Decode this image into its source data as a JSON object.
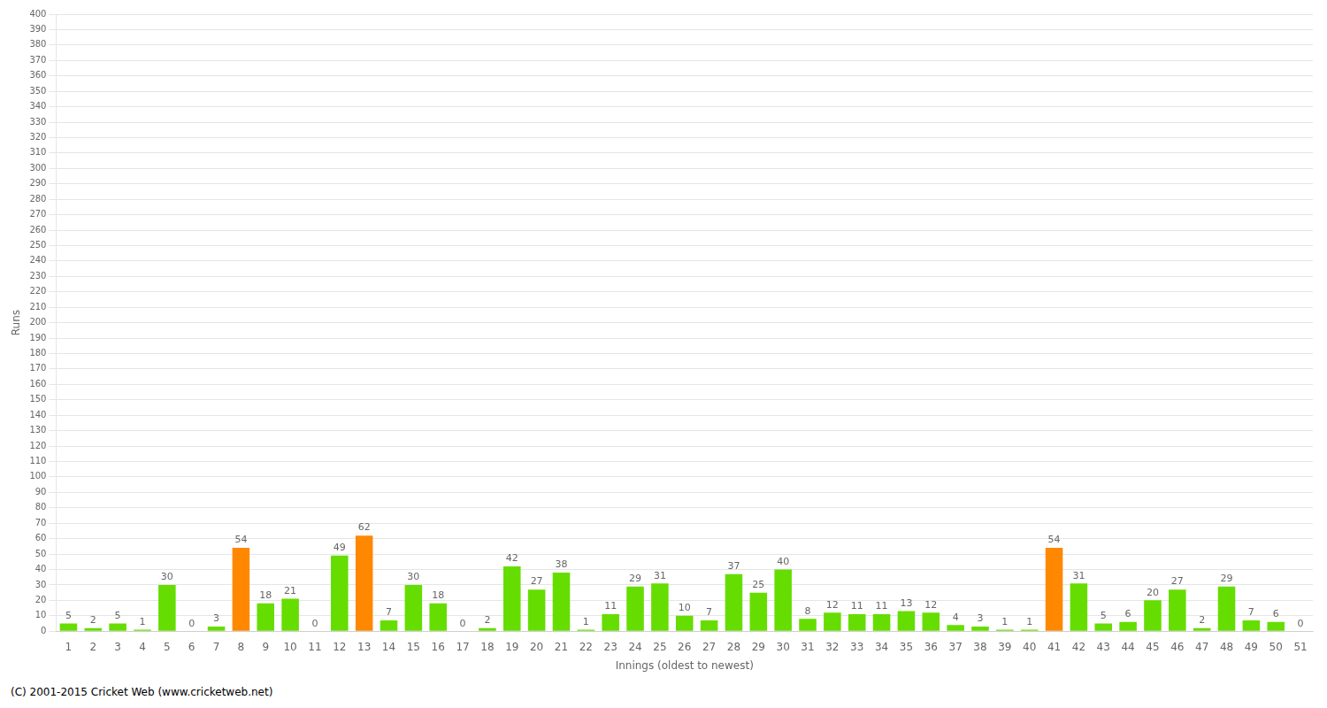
{
  "chart_data": {
    "type": "bar",
    "x_label": "Innings (oldest to newest)",
    "y_label": "Runs",
    "categories": [
      "1",
      "2",
      "3",
      "4",
      "5",
      "6",
      "7",
      "8",
      "9",
      "10",
      "11",
      "12",
      "13",
      "14",
      "15",
      "16",
      "17",
      "18",
      "19",
      "20",
      "21",
      "22",
      "23",
      "24",
      "25",
      "26",
      "27",
      "28",
      "29",
      "30",
      "31",
      "32",
      "33",
      "34",
      "35",
      "36",
      "37",
      "38",
      "39",
      "40",
      "41",
      "42",
      "43",
      "44",
      "45",
      "46",
      "47",
      "48",
      "49",
      "50",
      "51"
    ],
    "values": [
      5,
      2,
      5,
      1,
      30,
      0,
      3,
      54,
      18,
      21,
      0,
      49,
      62,
      7,
      30,
      18,
      0,
      2,
      42,
      27,
      38,
      1,
      11,
      29,
      31,
      10,
      7,
      37,
      25,
      40,
      8,
      12,
      11,
      11,
      13,
      12,
      4,
      3,
      1,
      1,
      54,
      31,
      5,
      6,
      20,
      27,
      2,
      29,
      7,
      6,
      0
    ],
    "colors": [
      "#66dd00",
      "#66dd00",
      "#66dd00",
      "#66dd00",
      "#66dd00",
      "#66dd00",
      "#66dd00",
      "#ff8800",
      "#66dd00",
      "#66dd00",
      "#66dd00",
      "#66dd00",
      "#ff8800",
      "#66dd00",
      "#66dd00",
      "#66dd00",
      "#66dd00",
      "#66dd00",
      "#66dd00",
      "#66dd00",
      "#66dd00",
      "#66dd00",
      "#66dd00",
      "#66dd00",
      "#66dd00",
      "#66dd00",
      "#66dd00",
      "#66dd00",
      "#66dd00",
      "#66dd00",
      "#66dd00",
      "#66dd00",
      "#66dd00",
      "#66dd00",
      "#66dd00",
      "#66dd00",
      "#66dd00",
      "#66dd00",
      "#66dd00",
      "#66dd00",
      "#ff8800",
      "#66dd00",
      "#66dd00",
      "#66dd00",
      "#66dd00",
      "#66dd00",
      "#66dd00",
      "#66dd00",
      "#66dd00",
      "#66dd00",
      "#66dd00"
    ],
    "ylim": [
      0,
      400
    ],
    "yticks": [
      0,
      10,
      20,
      30,
      40,
      50,
      60,
      70,
      80,
      90,
      100,
      110,
      120,
      130,
      140,
      150,
      160,
      170,
      180,
      190,
      200,
      210,
      220,
      230,
      240,
      250,
      260,
      270,
      280,
      290,
      300,
      310,
      320,
      330,
      340,
      350,
      360,
      370,
      380,
      390,
      400
    ],
    "grid": true,
    "data_labels": true,
    "annotations": [
      "(C) 2001-2015 Cricket Web (www.cricketweb.net)"
    ]
  }
}
